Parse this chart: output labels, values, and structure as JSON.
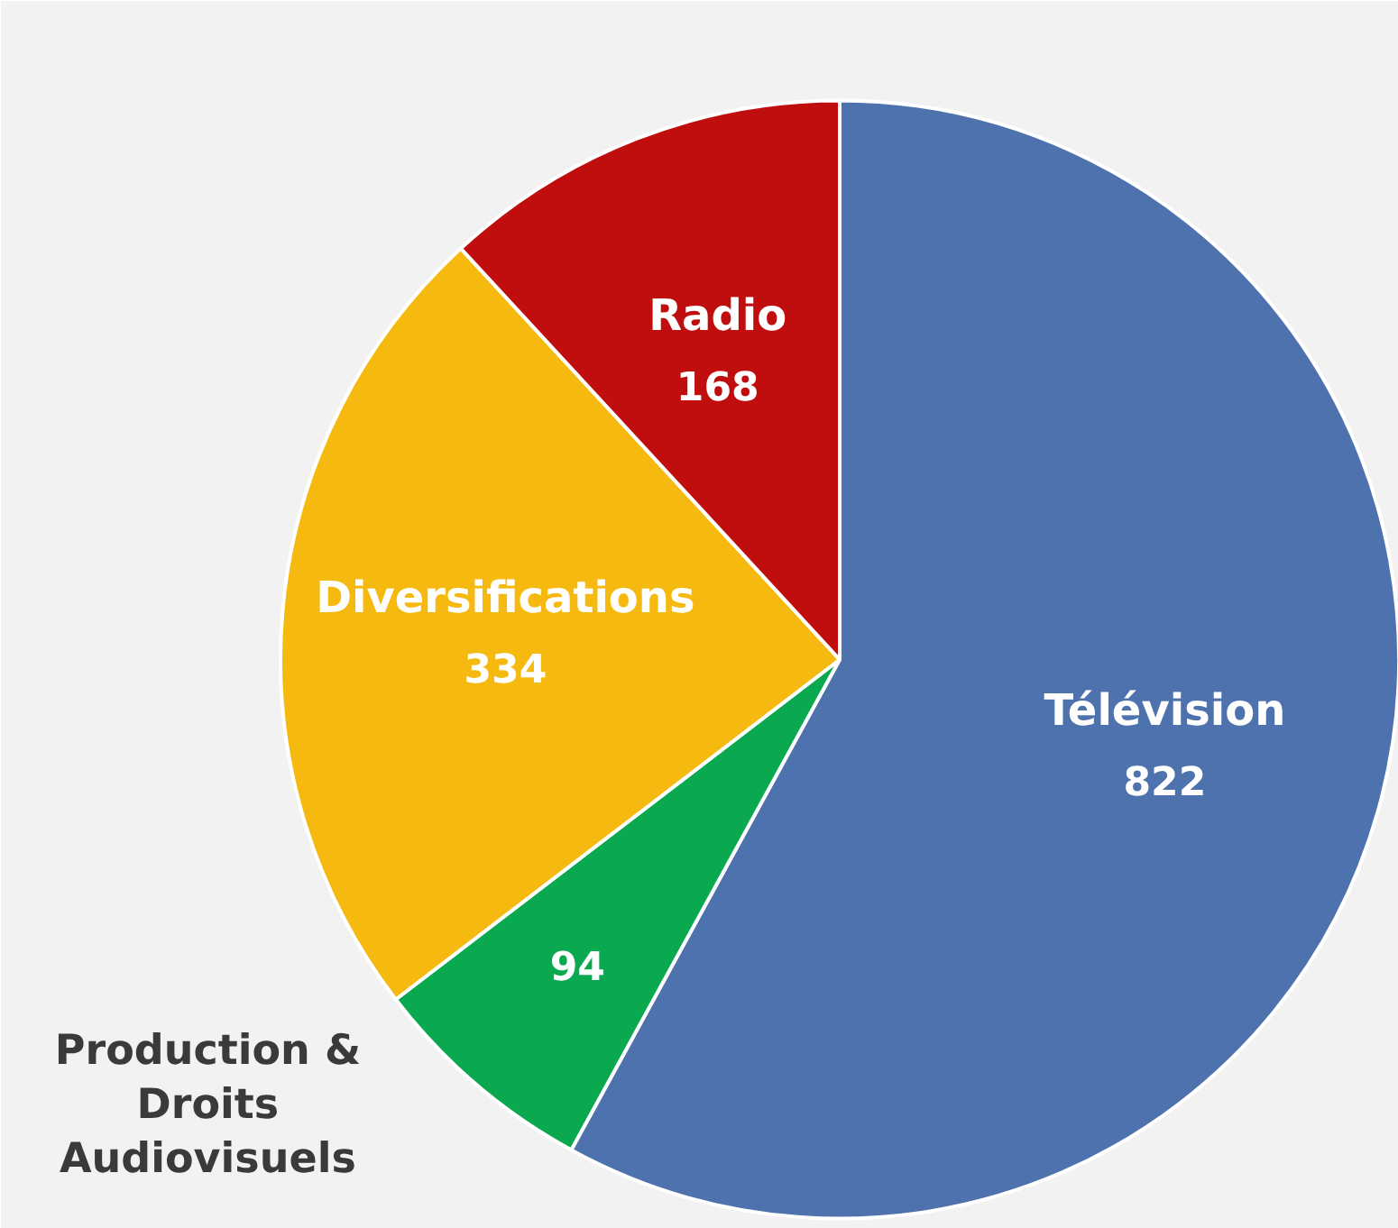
{
  "chart_data": {
    "type": "pie",
    "categories": [
      "Télévision",
      "Production & Droits Audiovisuels",
      "Diversifications",
      "Radio"
    ],
    "values": [
      822,
      94,
      334,
      168
    ],
    "colors": [
      "#4e72ad",
      "#0aa84f",
      "#f5b90f",
      "#c00d0d"
    ],
    "data_labels": true
  }
}
